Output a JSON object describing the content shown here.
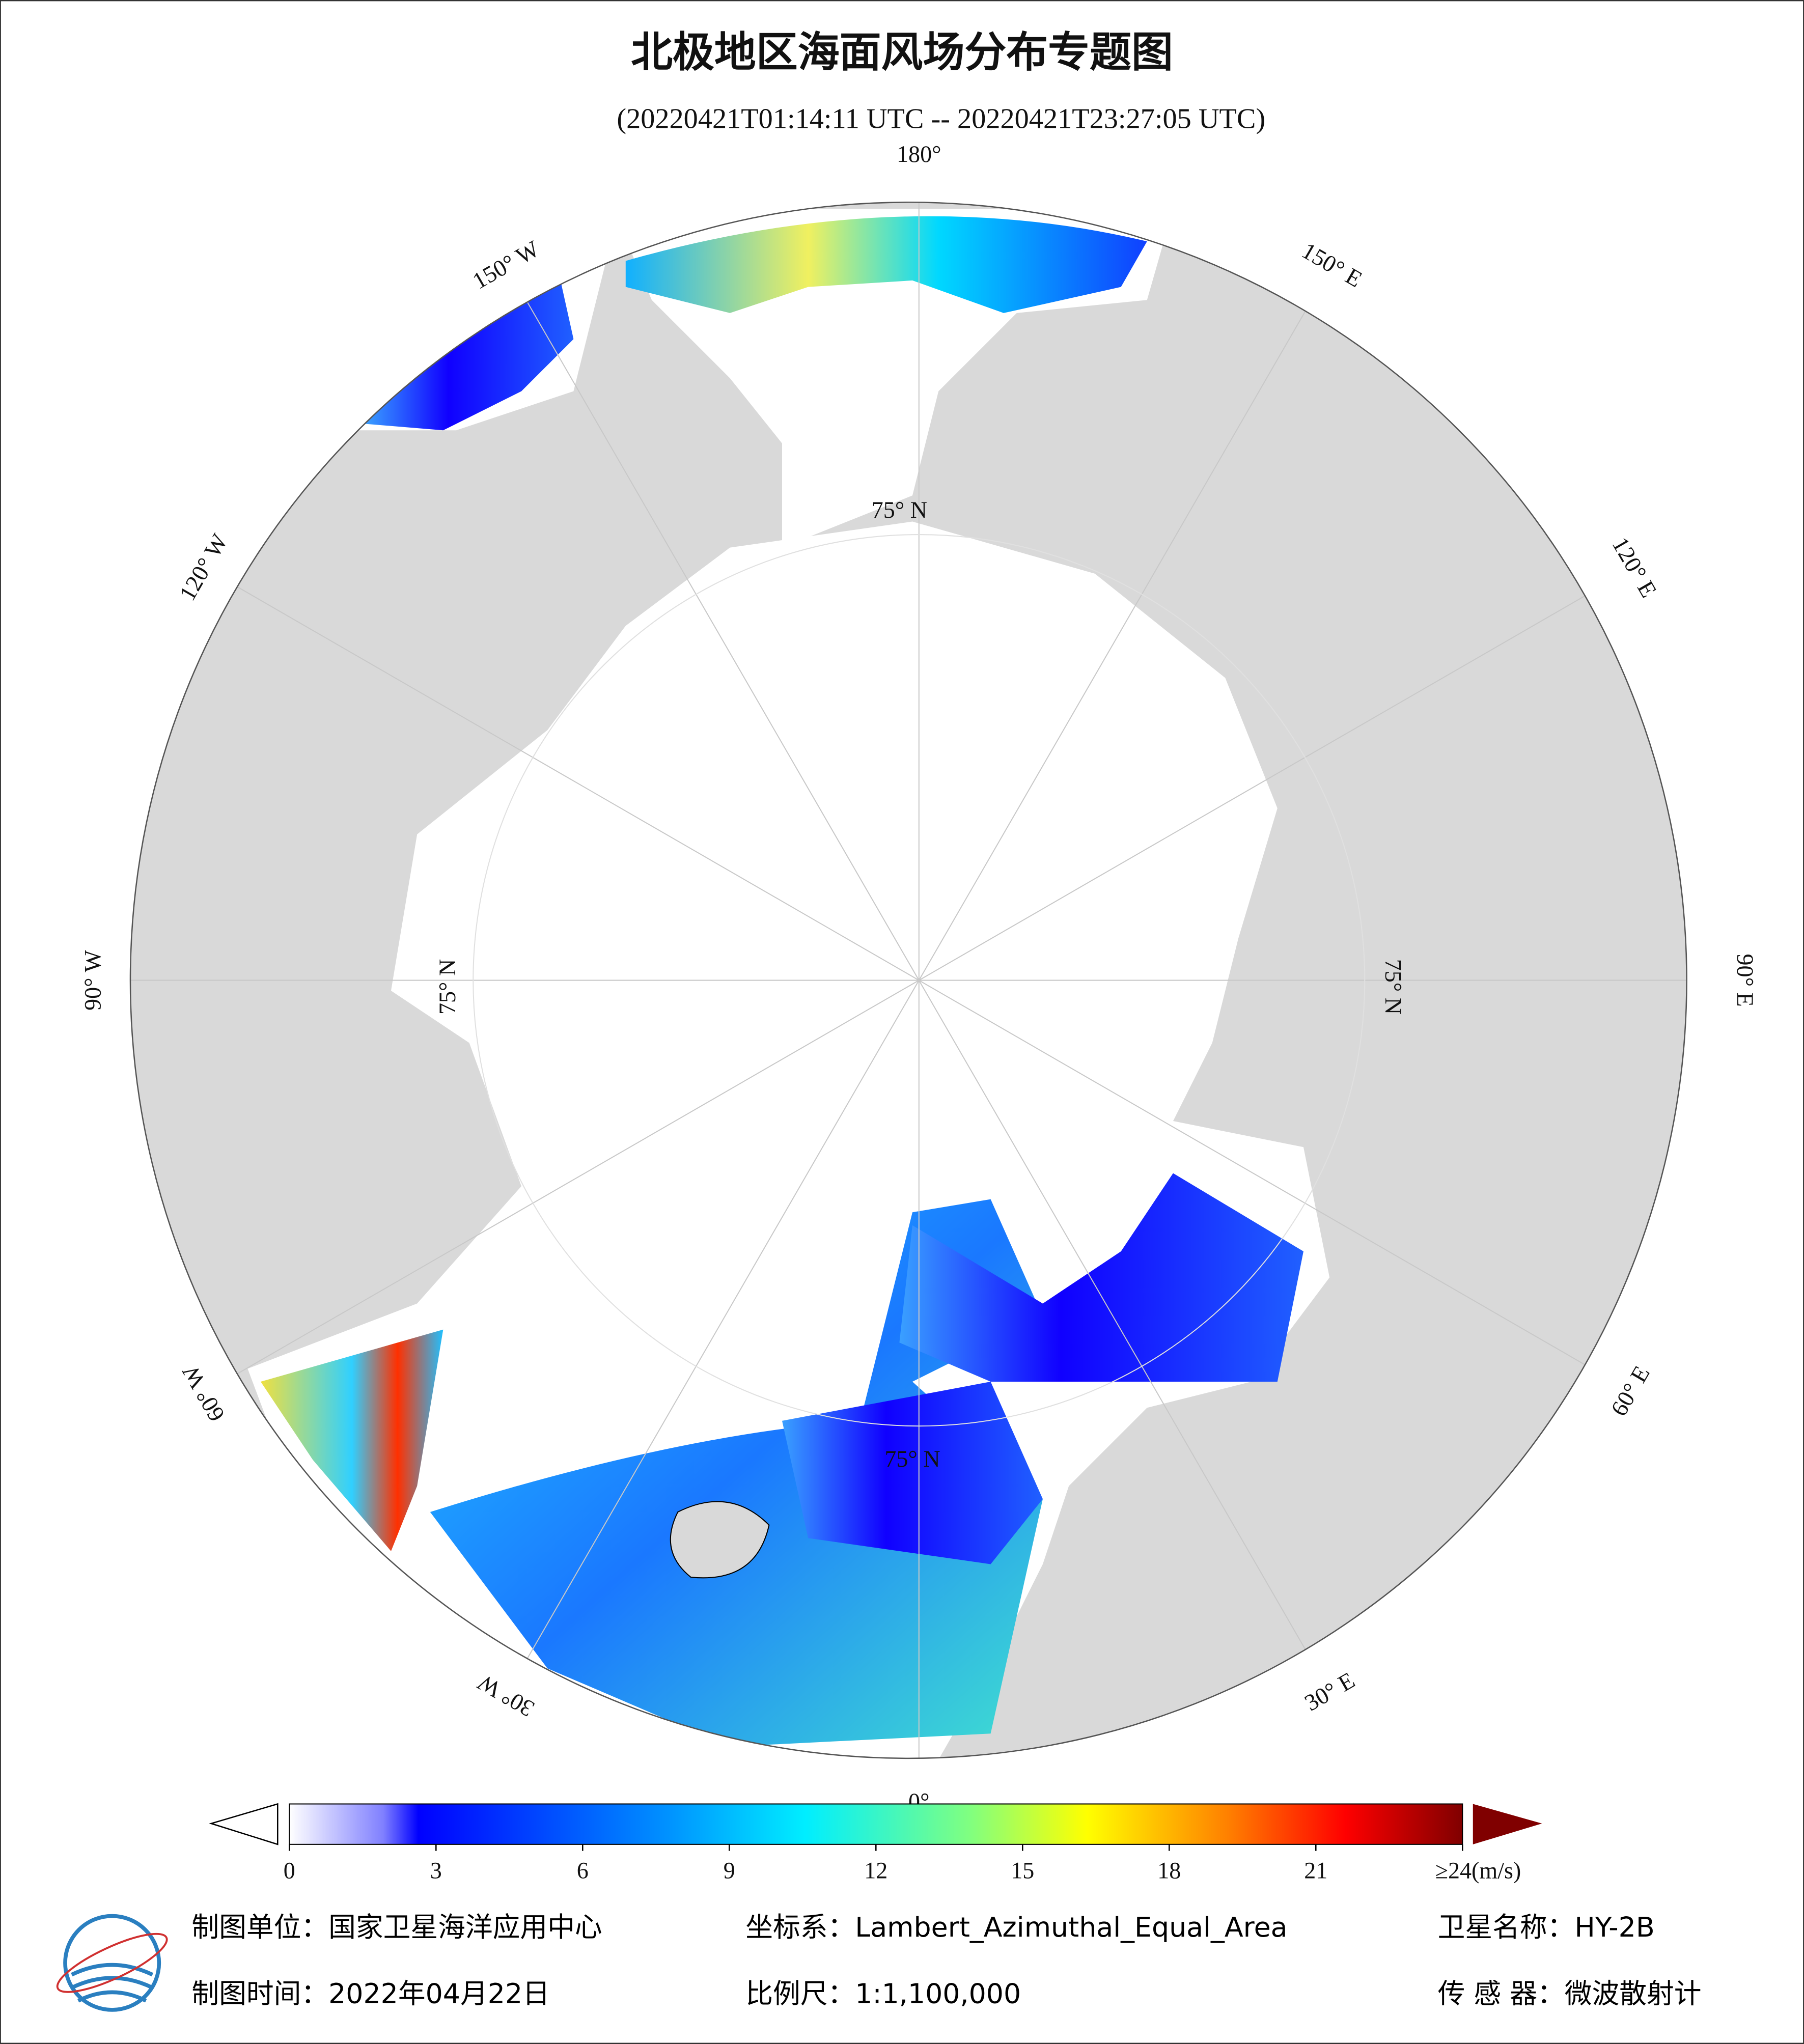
{
  "header": {
    "title": "北极地区海面风场分布专题图",
    "subtitle": "(20220421T01:14:11 UTC -- 20220421T23:27:05 UTC)"
  },
  "map": {
    "lon_labels": [
      "0°",
      "30° E",
      "60° E",
      "90° E",
      "120° E",
      "150° E",
      "180°",
      "150° W",
      "120° W",
      "90° W",
      "60° W",
      "30° W"
    ],
    "lat_label": "75° N"
  },
  "colorbar": {
    "clim": [
      0,
      24
    ],
    "ticks": [
      0,
      3,
      6,
      9,
      12,
      15,
      18,
      21,
      {
        "value": 24,
        "label": "≥24(m/s)"
      }
    ]
  },
  "footer": {
    "producer": "制图单位：国家卫星海洋应用中心",
    "crs": "坐标系：Lambert_Azimuthal_Equal_Area",
    "satellite": "卫星名称：HY-2B",
    "date": "制图时间：2022年04月22日",
    "scale": "比例尺：1:1,100,000",
    "sensor": "传 感 器：微波散射计"
  }
}
